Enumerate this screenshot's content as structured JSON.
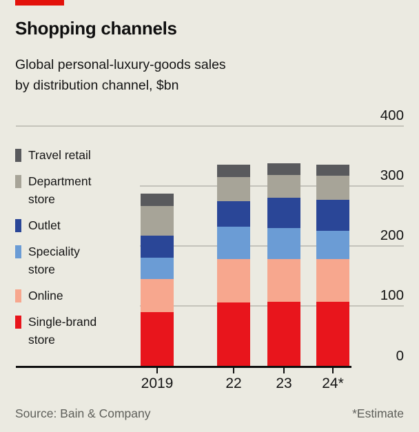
{
  "header": {
    "accent_color": "#e3120b",
    "title": "Shopping channels",
    "subtitle_line1": "Global personal-luxury-goods sales",
    "subtitle_line2": "by distribution channel, $bn"
  },
  "footer": {
    "source": "Source: Bain & Company",
    "footnote": "*Estimate"
  },
  "chart_data": {
    "type": "bar",
    "stacked": true,
    "title": "Shopping channels",
    "subtitle": "Global personal-luxury-goods sales by distribution channel, $bn",
    "unit": "$bn",
    "grid": true,
    "legend_position": "left",
    "categories": [
      "2019",
      "22",
      "23",
      "24*"
    ],
    "series": [
      {
        "name": "Single-brand store",
        "color": "#e8151c",
        "values": [
          90,
          106,
          107,
          107
        ]
      },
      {
        "name": "Online",
        "color": "#f7a78e",
        "values": [
          55,
          73,
          72,
          72
        ]
      },
      {
        "name": "Speciality store",
        "color": "#6b9cd5",
        "values": [
          36,
          53,
          51,
          47
        ]
      },
      {
        "name": "Outlet",
        "color": "#2a4697",
        "values": [
          37,
          43,
          51,
          51
        ]
      },
      {
        "name": "Department store",
        "color": "#a7a498",
        "values": [
          49,
          40,
          38,
          40
        ]
      },
      {
        "name": "Travel retail",
        "color": "#595a5d",
        "values": [
          20,
          21,
          19,
          19
        ]
      }
    ],
    "stack_order": "first_series_is_bottom",
    "totals": [
      287,
      336,
      338,
      336
    ],
    "legend": [
      {
        "series": "Travel retail",
        "lines": [
          "Travel retail"
        ]
      },
      {
        "series": "Department store",
        "lines": [
          "Department",
          "store"
        ]
      },
      {
        "series": "Outlet",
        "lines": [
          "Outlet"
        ]
      },
      {
        "series": "Speciality store",
        "lines": [
          "Speciality",
          "store"
        ]
      },
      {
        "series": "Online",
        "lines": [
          "Online"
        ]
      },
      {
        "series": "Single-brand store",
        "lines": [
          "Single-brand",
          "store"
        ]
      }
    ],
    "y_axis": {
      "ticks": [
        0,
        100,
        200,
        300,
        400
      ],
      "min": 0,
      "max": 400
    },
    "colors": {
      "gridline": "#c4c3bb",
      "axis": "#0e0e0e",
      "text": "#141414",
      "muted_text": "#5e5f5a",
      "background": "#ebeae1"
    }
  }
}
